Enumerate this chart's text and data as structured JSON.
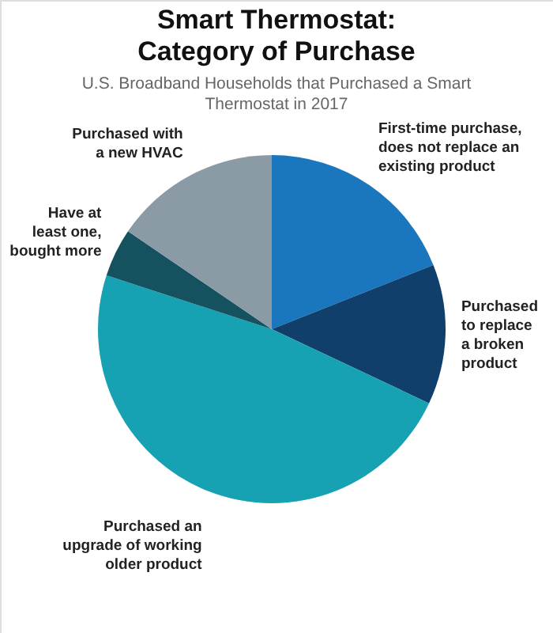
{
  "chart_data": {
    "type": "pie",
    "title": "Smart Thermostat:\nCategory of Purchase",
    "subtitle": "U.S. Broadband Households that Purchased a Smart\nThermostat in 2017",
    "categories": [
      "First-time purchase,\ndoes not replace an\nexisting product",
      "Purchased\nto replace\na broken\nproduct",
      "Purchased an\nupgrade of working\nolder product",
      "Have at\nleast one,\nbought more",
      "Purchased with\na new HVAC"
    ],
    "values": [
      19,
      13,
      48,
      4.5,
      15.5
    ],
    "colors": [
      "#1a76bd",
      "#0f3f6a",
      "#17a2b3",
      "#165160",
      "#8a9ba6"
    ]
  }
}
